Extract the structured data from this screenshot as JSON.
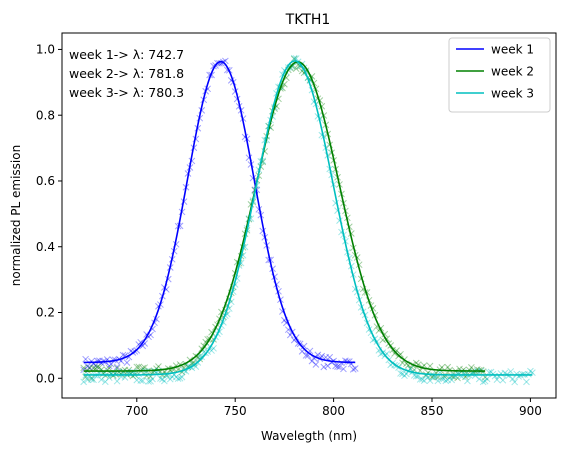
{
  "chart_data": {
    "type": "line",
    "title": "TKTH1",
    "xlabel": "Wavelegth (nm)",
    "ylabel": "normalized PL emission",
    "xlim": [
      662,
      913
    ],
    "ylim": [
      -0.06,
      1.05
    ],
    "xticks": [
      700,
      750,
      800,
      850,
      900
    ],
    "yticks": [
      0.0,
      0.2,
      0.4,
      0.6,
      0.8,
      1.0
    ],
    "annotations": [
      "week 1-> λ: 742.7",
      "week 2-> λ: 781.8",
      "week 3-> λ: 780.3"
    ],
    "legend_position": "top-right",
    "series": [
      {
        "name": "week 1",
        "color": "#0000ff",
        "fit": {
          "center": 742.7,
          "sigma": 17,
          "amplitude": 0.915,
          "baseline": 0.048
        },
        "x_range": [
          673,
          811
        ]
      },
      {
        "name": "week 2",
        "color": "#008000",
        "fit": {
          "center": 781.8,
          "sigma": 21,
          "amplitude": 0.94,
          "baseline": 0.022
        },
        "x_range": [
          673,
          877
        ]
      },
      {
        "name": "week 3",
        "color": "#00bfbf",
        "fit": {
          "center": 780.3,
          "sigma": 19.5,
          "amplitude": 0.955,
          "baseline": 0.01
        },
        "x_range": [
          673,
          901
        ]
      }
    ]
  }
}
